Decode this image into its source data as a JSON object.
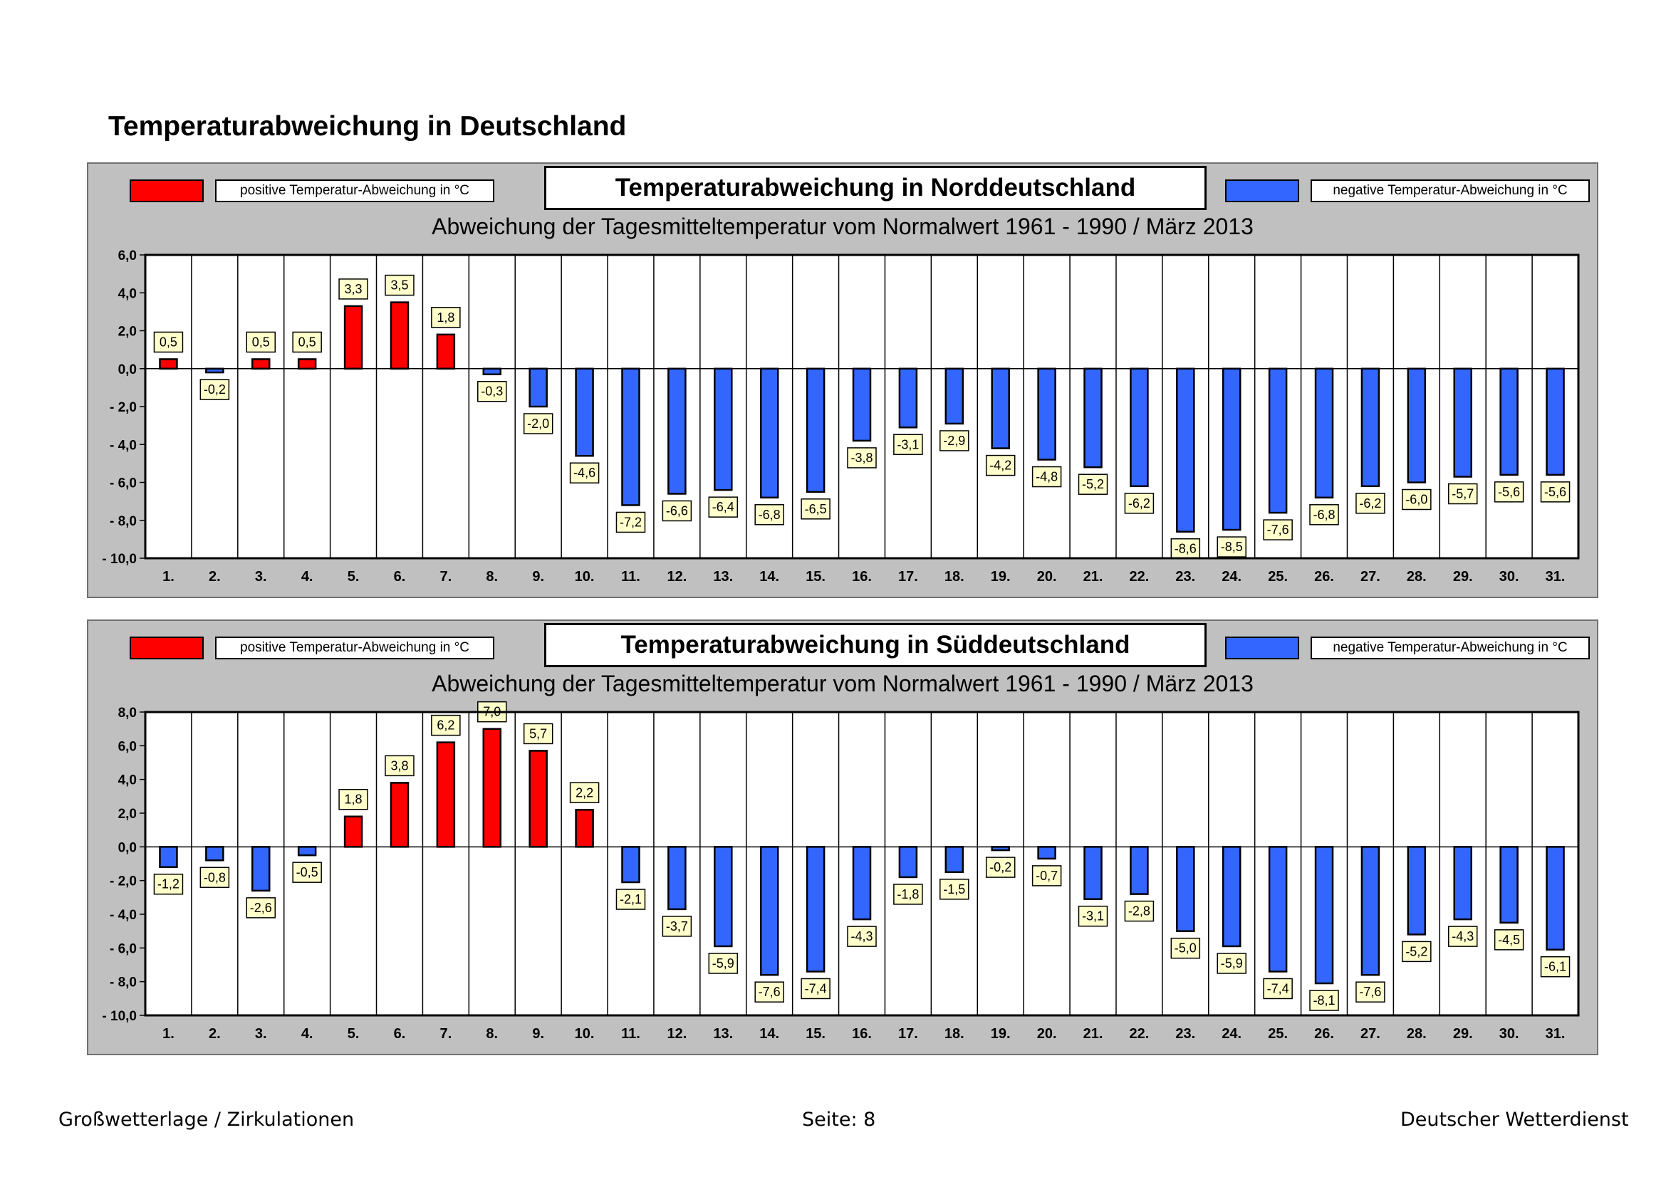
{
  "page_title": "Temperaturabweichung in Deutschland",
  "colors": {
    "positive": "#ff0000",
    "negative": "#3366ff",
    "label_bg": "#ffffcc",
    "panel_bg": "#c0c0c0"
  },
  "footer": {
    "left": "Großwetterlage / Zirkulationen",
    "center": "Seite: 8",
    "right": "Deutscher Wetterdienst"
  },
  "chart_data": [
    {
      "type": "bar",
      "title": "Temperaturabweichung in Norddeutschland",
      "subtitle": "Abweichung der Tagesmitteltemperatur vom Normalwert 1961 - 1990  /  März 2013",
      "legend_positive": "positive Temperatur-Abweichung in °C",
      "legend_negative": "negative Temperatur-Abweichung in °C",
      "ylim": [
        -10,
        6
      ],
      "yticks": [
        6,
        4,
        2,
        0,
        -2,
        -4,
        -6,
        -8,
        -10
      ],
      "ytick_labels": [
        "6,0",
        "4,0",
        "2,0",
        "0,0",
        "- 2,0",
        "- 4,0",
        "- 6,0",
        "- 8,0",
        "- 10,0"
      ],
      "categories": [
        "1.",
        "2.",
        "3.",
        "4.",
        "5.",
        "6.",
        "7.",
        "8.",
        "9.",
        "10.",
        "11.",
        "12.",
        "13.",
        "14.",
        "15.",
        "16.",
        "17.",
        "18.",
        "19.",
        "20.",
        "21.",
        "22.",
        "23.",
        "24.",
        "25.",
        "26.",
        "27.",
        "28.",
        "29.",
        "30.",
        "31."
      ],
      "values": [
        0.5,
        -0.2,
        0.5,
        0.5,
        3.3,
        3.5,
        1.8,
        -0.3,
        -2.0,
        -4.6,
        -7.2,
        -6.6,
        -6.4,
        -6.8,
        -6.5,
        -3.8,
        -3.1,
        -2.9,
        -4.2,
        -4.8,
        -5.2,
        -6.2,
        -8.6,
        -8.5,
        -7.6,
        -6.8,
        -6.2,
        -6.0,
        -5.7,
        -5.6,
        -5.6
      ],
      "value_labels": [
        "0,5",
        "-0,2",
        "0,5",
        "0,5",
        "3,3",
        "3,5",
        "1,8",
        "-0,3",
        "-2,0",
        "-4,6",
        "-7,2",
        "-6,6",
        "-6,4",
        "-6,8",
        "-6,5",
        "-3,8",
        "-3,1",
        "-2,9",
        "-4,2",
        "-4,8",
        "-5,2",
        "-6,2",
        "-8,6",
        "-8,5",
        "-7,6",
        "-6,8",
        "-6,2",
        "-6,0",
        "-5,7",
        "-5,6",
        "-5,6"
      ]
    },
    {
      "type": "bar",
      "title": "Temperaturabweichung in Süddeutschland",
      "subtitle": "Abweichung der Tagesmitteltemperatur vom Normalwert 1961 - 1990  /  März 2013",
      "legend_positive": "positive Temperatur-Abweichung in °C",
      "legend_negative": "negative Temperatur-Abweichung in °C",
      "ylim": [
        -10,
        8
      ],
      "yticks": [
        8,
        6,
        4,
        2,
        0,
        -2,
        -4,
        -6,
        -8,
        -10
      ],
      "ytick_labels": [
        "8,0",
        "6,0",
        "4,0",
        "2,0",
        "0,0",
        "- 2,0",
        "- 4,0",
        "- 6,0",
        "- 8,0",
        "- 10,0"
      ],
      "categories": [
        "1.",
        "2.",
        "3.",
        "4.",
        "5.",
        "6.",
        "7.",
        "8.",
        "9.",
        "10.",
        "11.",
        "12.",
        "13.",
        "14.",
        "15.",
        "16.",
        "17.",
        "18.",
        "19.",
        "20.",
        "21.",
        "22.",
        "23.",
        "24.",
        "25.",
        "26.",
        "27.",
        "28.",
        "29.",
        "30.",
        "31."
      ],
      "values": [
        -1.2,
        -0.8,
        -2.6,
        -0.5,
        1.8,
        3.8,
        6.2,
        7.0,
        5.7,
        2.2,
        -2.1,
        -3.7,
        -5.9,
        -7.6,
        -7.4,
        -4.3,
        -1.8,
        -1.5,
        -0.2,
        -0.7,
        -3.1,
        -2.8,
        -5.0,
        -5.9,
        -7.4,
        -8.1,
        -7.6,
        -5.2,
        -4.3,
        -4.5,
        -6.1
      ],
      "value_labels": [
        "-1,2",
        "-0,8",
        "-2,6",
        "-0,5",
        "1,8",
        "3,8",
        "6,2",
        "7,0",
        "5,7",
        "2,2",
        "-2,1",
        "-3,7",
        "-5,9",
        "-7,6",
        "-7,4",
        "-4,3",
        "-1,8",
        "-1,5",
        "-0,2",
        "-0,7",
        "-3,1",
        "-2,8",
        "-5,0",
        "-5,9",
        "-7,4",
        "-8,1",
        "-7,6",
        "-5,2",
        "-4,3",
        "-4,5",
        "-6,1"
      ]
    }
  ]
}
